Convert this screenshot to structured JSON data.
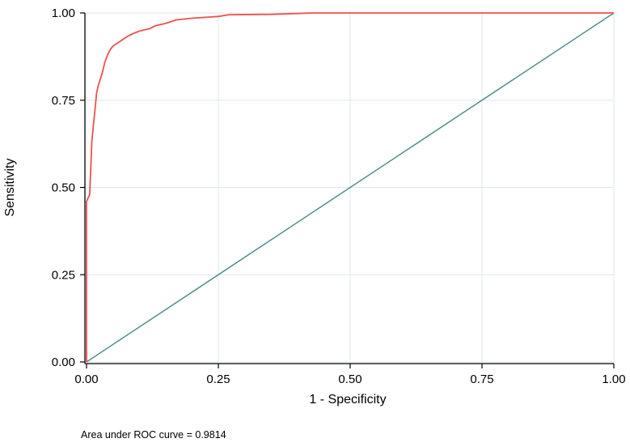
{
  "chart_data": {
    "type": "line",
    "xlabel": "1 - Specificity",
    "ylabel": "Sensitivity",
    "xlim": [
      0,
      1
    ],
    "ylim": [
      0,
      1
    ],
    "x_ticks": [
      "0.00",
      "0.25",
      "0.50",
      "0.75",
      "1.00"
    ],
    "y_ticks": [
      "0.00",
      "0.25",
      "0.50",
      "0.75",
      "1.00"
    ],
    "grid": true,
    "legend": "none",
    "note": "Area under ROC curve = 0.9814",
    "series": [
      {
        "color": "#f0504f",
        "points": [
          [
            0.0,
            0.0
          ],
          [
            0.0,
            0.46
          ],
          [
            0.003,
            0.47
          ],
          [
            0.006,
            0.48
          ],
          [
            0.008,
            0.55
          ],
          [
            0.01,
            0.63
          ],
          [
            0.013,
            0.68
          ],
          [
            0.016,
            0.72
          ],
          [
            0.019,
            0.77
          ],
          [
            0.022,
            0.79
          ],
          [
            0.026,
            0.81
          ],
          [
            0.03,
            0.83
          ],
          [
            0.035,
            0.86
          ],
          [
            0.04,
            0.88
          ],
          [
            0.045,
            0.895
          ],
          [
            0.05,
            0.905
          ],
          [
            0.06,
            0.915
          ],
          [
            0.07,
            0.925
          ],
          [
            0.08,
            0.935
          ],
          [
            0.09,
            0.942
          ],
          [
            0.1,
            0.948
          ],
          [
            0.12,
            0.955
          ],
          [
            0.13,
            0.963
          ],
          [
            0.15,
            0.97
          ],
          [
            0.17,
            0.98
          ],
          [
            0.2,
            0.985
          ],
          [
            0.25,
            0.99
          ],
          [
            0.27,
            0.995
          ],
          [
            0.35,
            0.996
          ],
          [
            0.43,
            1.0
          ],
          [
            1.0,
            1.0
          ]
        ]
      },
      {
        "color": "#4f8f8c",
        "points": [
          [
            0,
            0
          ],
          [
            1,
            1
          ]
        ]
      }
    ]
  }
}
